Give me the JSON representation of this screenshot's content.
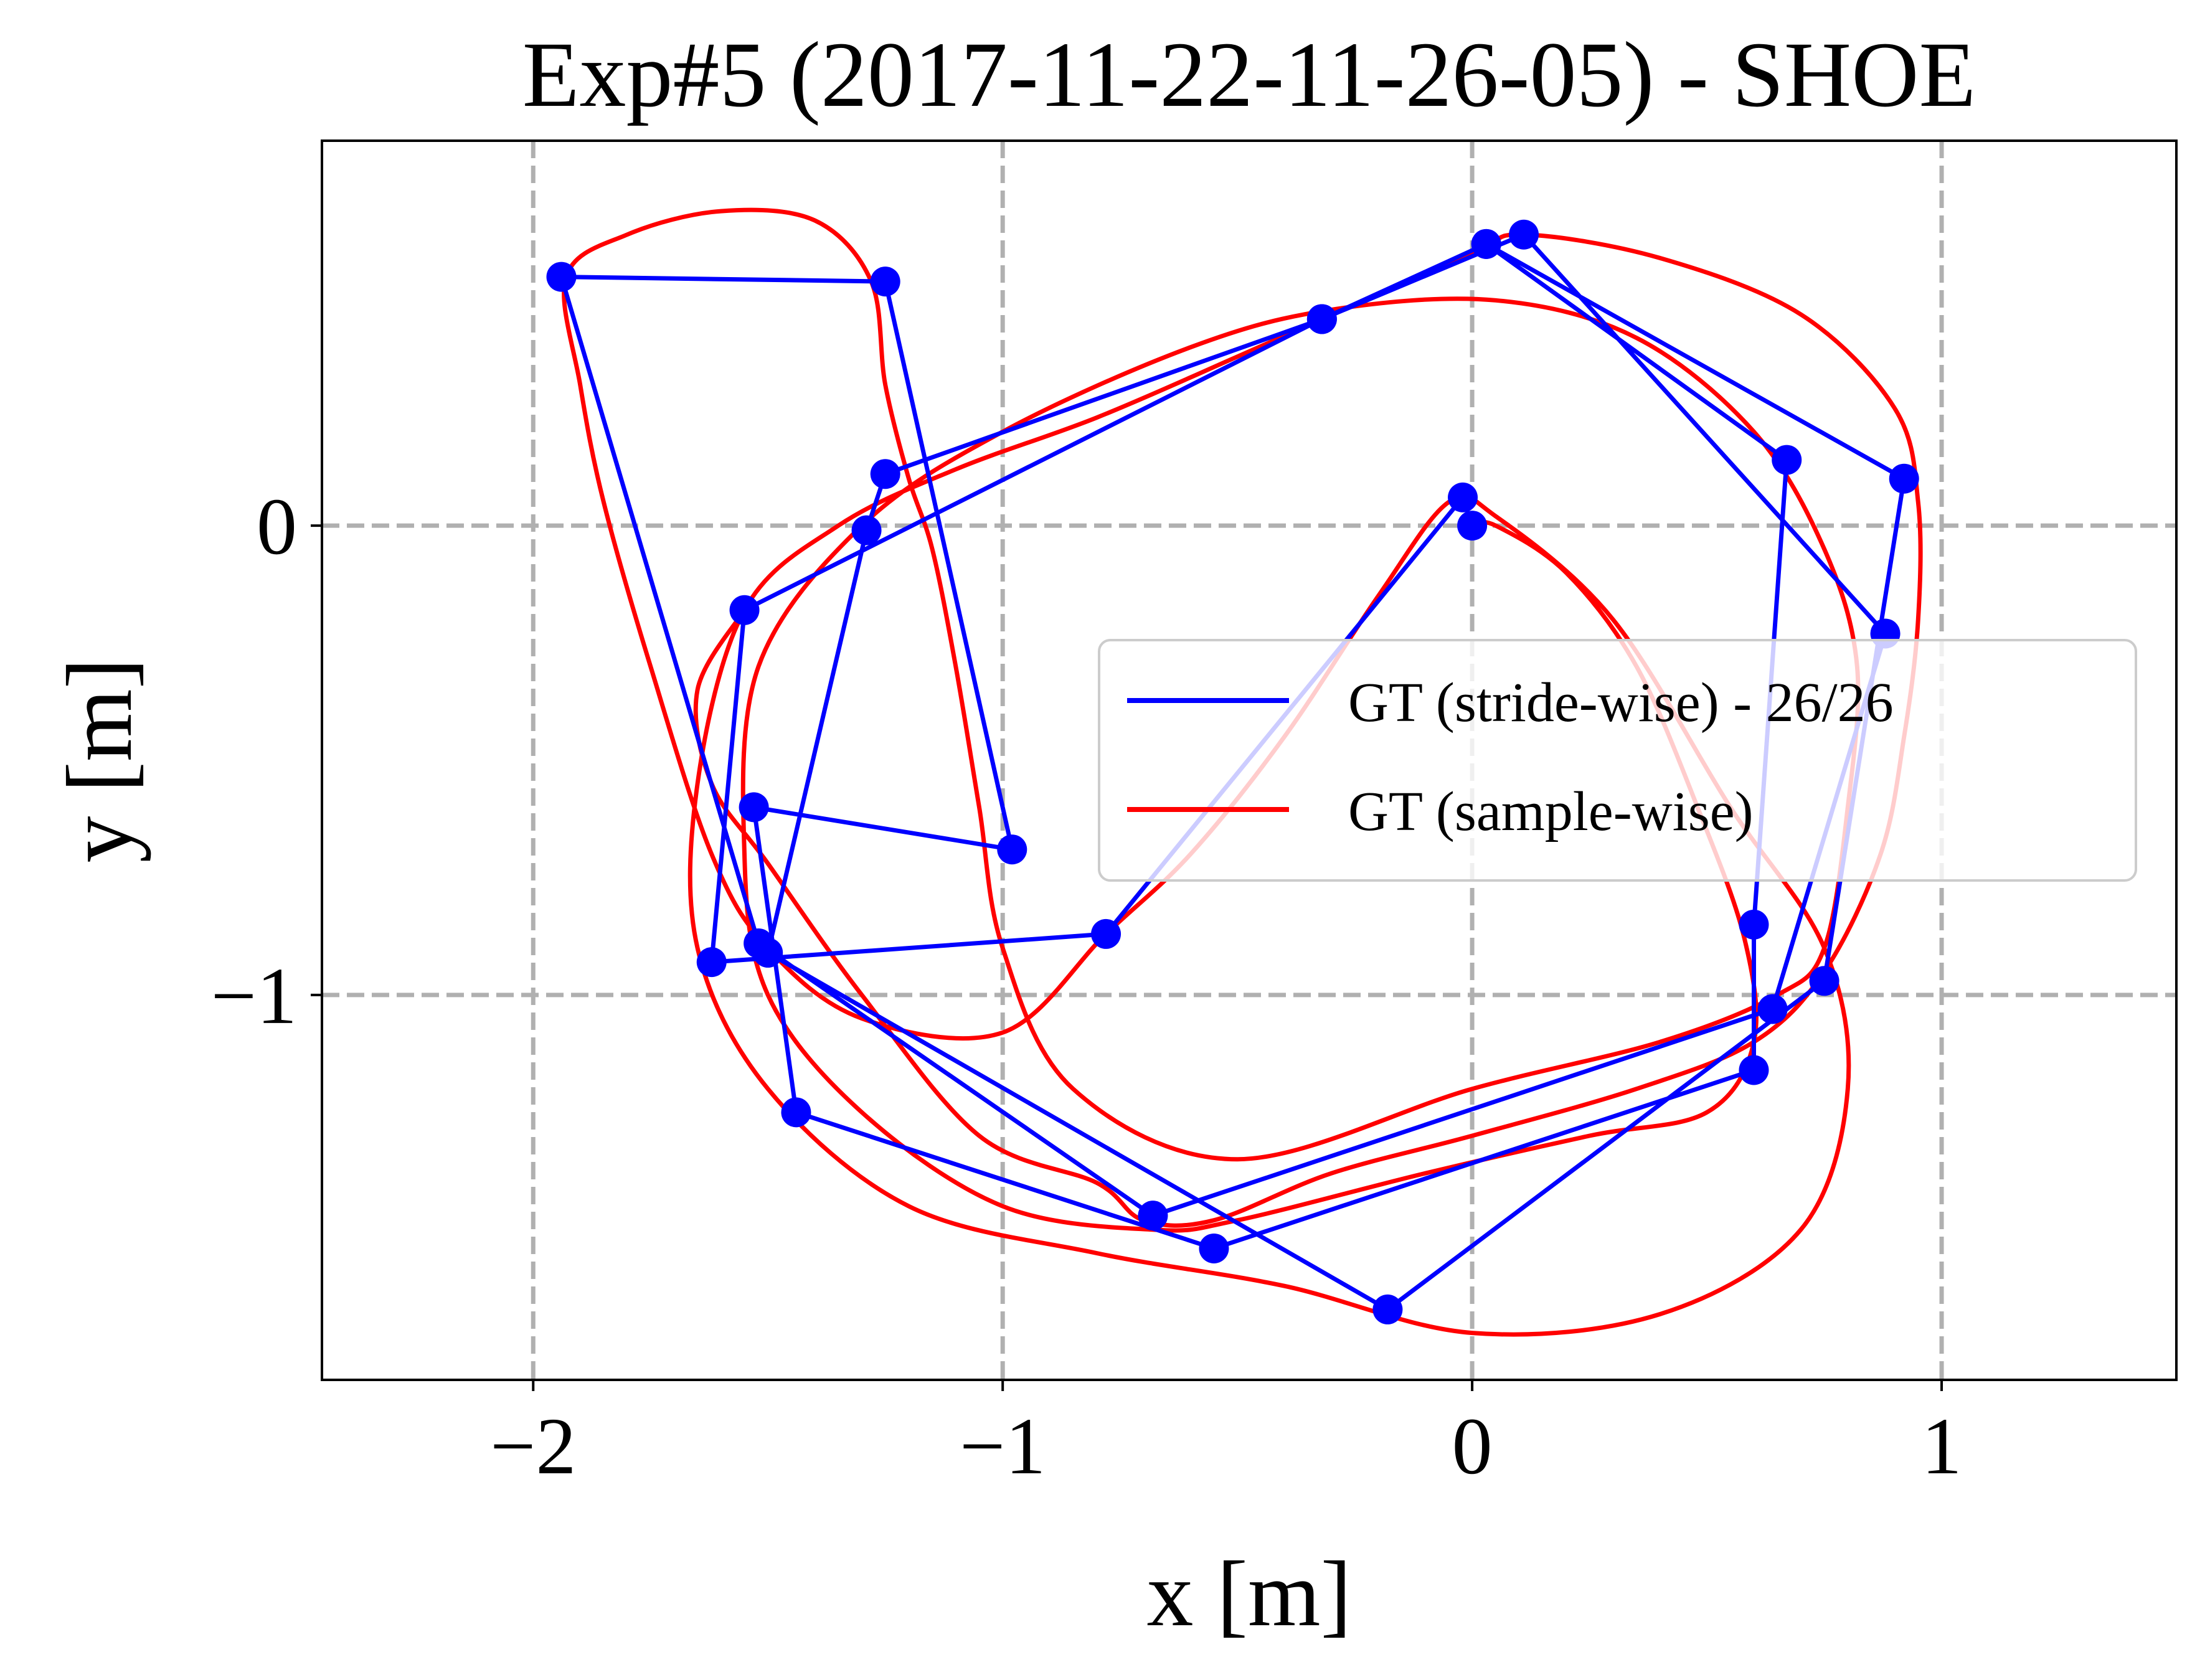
{
  "chart_data": {
    "type": "line",
    "title": "Exp#5 (2017-11-22-11-26-05) - SHOE",
    "xlabel": "x [m]",
    "ylabel": "y [m]",
    "xlim": [
      -2.45,
      1.5
    ],
    "ylim": [
      -1.82,
      0.82
    ],
    "xticks": [
      -2,
      -1,
      0,
      1
    ],
    "xtick_labels": [
      "−2",
      "−1",
      "0",
      "1"
    ],
    "yticks": [
      0,
      -1
    ],
    "ytick_labels": [
      "0",
      "−1"
    ],
    "grid": true,
    "legend_position": "center-right",
    "series": [
      {
        "name": "GT (stride-wise) - 26/26",
        "color": "#0000ff",
        "markers": true,
        "points": [
          [
            0.0,
            0.0
          ],
          [
            -0.02,
            0.06
          ],
          [
            -0.78,
            -0.87
          ],
          [
            -1.62,
            -0.93
          ],
          [
            -1.55,
            -0.18
          ],
          [
            -0.32,
            0.44
          ],
          [
            0.03,
            0.6
          ],
          [
            0.67,
            0.14
          ],
          [
            0.6,
            -0.85
          ],
          [
            0.6,
            -1.16
          ],
          [
            -0.55,
            -1.54
          ],
          [
            -1.44,
            -1.25
          ],
          [
            -1.53,
            -0.6
          ],
          [
            -0.98,
            -0.69
          ],
          [
            -1.25,
            0.52
          ],
          [
            -1.94,
            0.53
          ],
          [
            -1.52,
            -0.89
          ],
          [
            -0.68,
            -1.47
          ],
          [
            0.64,
            -1.03
          ],
          [
            0.88,
            -0.23
          ],
          [
            0.11,
            0.62
          ],
          [
            -0.32,
            0.44
          ],
          [
            -1.25,
            0.11
          ],
          [
            -1.29,
            -0.01
          ],
          [
            -1.5,
            -0.91
          ],
          [
            -0.18,
            -1.67
          ],
          [
            0.75,
            -0.97
          ],
          [
            0.92,
            0.1
          ],
          [
            0.03,
            0.6
          ]
        ]
      },
      {
        "name": "GT (sample-wise)",
        "color": "#ff0000",
        "markers": false,
        "points": [
          [
            0.0,
            0.0
          ],
          [
            0.05,
            0.0
          ],
          [
            0.2,
            -0.1
          ],
          [
            0.35,
            -0.3
          ],
          [
            0.48,
            -0.6
          ],
          [
            0.58,
            -0.88
          ],
          [
            0.6,
            -1.1
          ],
          [
            0.5,
            -1.25
          ],
          [
            0.25,
            -1.3
          ],
          [
            -0.1,
            -1.38
          ],
          [
            -0.5,
            -1.48
          ],
          [
            -0.68,
            -1.5
          ],
          [
            -1.0,
            -1.45
          ],
          [
            -1.3,
            -1.25
          ],
          [
            -1.5,
            -1.0
          ],
          [
            -1.55,
            -0.7
          ],
          [
            -1.52,
            -0.3
          ],
          [
            -1.3,
            0.0
          ],
          [
            -1.0,
            0.2
          ],
          [
            -0.6,
            0.38
          ],
          [
            -0.3,
            0.46
          ],
          [
            0.05,
            0.48
          ],
          [
            0.35,
            0.4
          ],
          [
            0.6,
            0.2
          ],
          [
            0.75,
            -0.05
          ],
          [
            0.82,
            -0.3
          ],
          [
            0.8,
            -0.6
          ],
          [
            0.75,
            -0.9
          ],
          [
            0.65,
            -1.0
          ],
          [
            0.4,
            -1.1
          ],
          [
            0.0,
            -1.2
          ],
          [
            -0.5,
            -1.35
          ],
          [
            -0.85,
            -1.2
          ],
          [
            -1.0,
            -0.9
          ],
          [
            -1.05,
            -0.6
          ],
          [
            -1.1,
            -0.3
          ],
          [
            -1.15,
            -0.05
          ],
          [
            -1.2,
            0.1
          ],
          [
            -1.25,
            0.3
          ],
          [
            -1.28,
            0.52
          ],
          [
            -1.4,
            0.65
          ],
          [
            -1.6,
            0.67
          ],
          [
            -1.8,
            0.62
          ],
          [
            -1.93,
            0.53
          ],
          [
            -1.9,
            0.3
          ],
          [
            -1.85,
            0.05
          ],
          [
            -1.75,
            -0.3
          ],
          [
            -1.62,
            -0.7
          ],
          [
            -1.5,
            -0.9
          ],
          [
            -1.3,
            -1.05
          ],
          [
            -1.0,
            -1.08
          ],
          [
            -0.78,
            -0.87
          ],
          [
            -0.6,
            -0.7
          ],
          [
            -0.4,
            -0.45
          ],
          [
            -0.2,
            -0.15
          ],
          [
            -0.05,
            0.05
          ],
          [
            0.05,
            0.02
          ],
          [
            0.3,
            -0.2
          ],
          [
            0.55,
            -0.6
          ],
          [
            0.75,
            -0.9
          ],
          [
            0.8,
            -1.2
          ],
          [
            0.7,
            -1.5
          ],
          [
            0.4,
            -1.68
          ],
          [
            0.0,
            -1.72
          ],
          [
            -0.4,
            -1.62
          ],
          [
            -0.8,
            -1.55
          ],
          [
            -1.2,
            -1.45
          ],
          [
            -1.5,
            -1.2
          ],
          [
            -1.65,
            -0.9
          ],
          [
            -1.65,
            -0.55
          ],
          [
            -1.55,
            -0.18
          ],
          [
            -1.35,
            0.0
          ],
          [
            -1.1,
            0.12
          ],
          [
            -0.8,
            0.23
          ],
          [
            -0.5,
            0.36
          ],
          [
            -0.32,
            0.44
          ],
          [
            0.0,
            0.58
          ],
          [
            0.11,
            0.62
          ],
          [
            0.4,
            0.57
          ],
          [
            0.7,
            0.45
          ],
          [
            0.9,
            0.25
          ],
          [
            0.95,
            0.05
          ],
          [
            0.95,
            -0.2
          ],
          [
            0.92,
            -0.45
          ],
          [
            0.87,
            -0.7
          ],
          [
            0.75,
            -0.95
          ],
          [
            0.6,
            -1.1
          ],
          [
            0.35,
            -1.2
          ],
          [
            0.0,
            -1.3
          ],
          [
            -0.3,
            -1.38
          ],
          [
            -0.55,
            -1.48
          ],
          [
            -0.7,
            -1.48
          ],
          [
            -0.8,
            -1.4
          ],
          [
            -1.05,
            -1.3
          ],
          [
            -1.3,
            -1.0
          ],
          [
            -1.5,
            -0.72
          ],
          [
            -1.62,
            -0.55
          ],
          [
            -1.65,
            -0.35
          ],
          [
            -1.55,
            -0.18
          ]
        ]
      }
    ]
  }
}
